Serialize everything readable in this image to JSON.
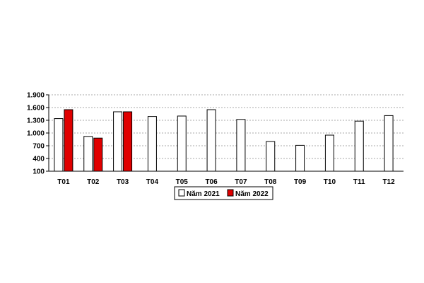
{
  "chart_data": {
    "type": "bar",
    "categories": [
      "T01",
      "T02",
      "T03",
      "T04",
      "T05",
      "T06",
      "T07",
      "T08",
      "T09",
      "T10",
      "T11",
      "T12"
    ],
    "series": [
      {
        "name": "Năm 2021",
        "values": [
          1340,
          920,
          1500,
          1390,
          1400,
          1550,
          1320,
          800,
          710,
          950,
          1280,
          1410
        ],
        "color": "#ffffff"
      },
      {
        "name": "Năm 2022",
        "values": [
          1550,
          880,
          1500,
          null,
          null,
          null,
          null,
          null,
          null,
          null,
          null,
          null
        ],
        "color": "#e00000"
      }
    ],
    "y_ticks": [
      "100",
      "400",
      "700",
      "1.000",
      "1.300",
      "1.600",
      "1.900"
    ],
    "ylim": [
      100,
      1900
    ],
    "grid": true,
    "legend_position": "bottom"
  }
}
